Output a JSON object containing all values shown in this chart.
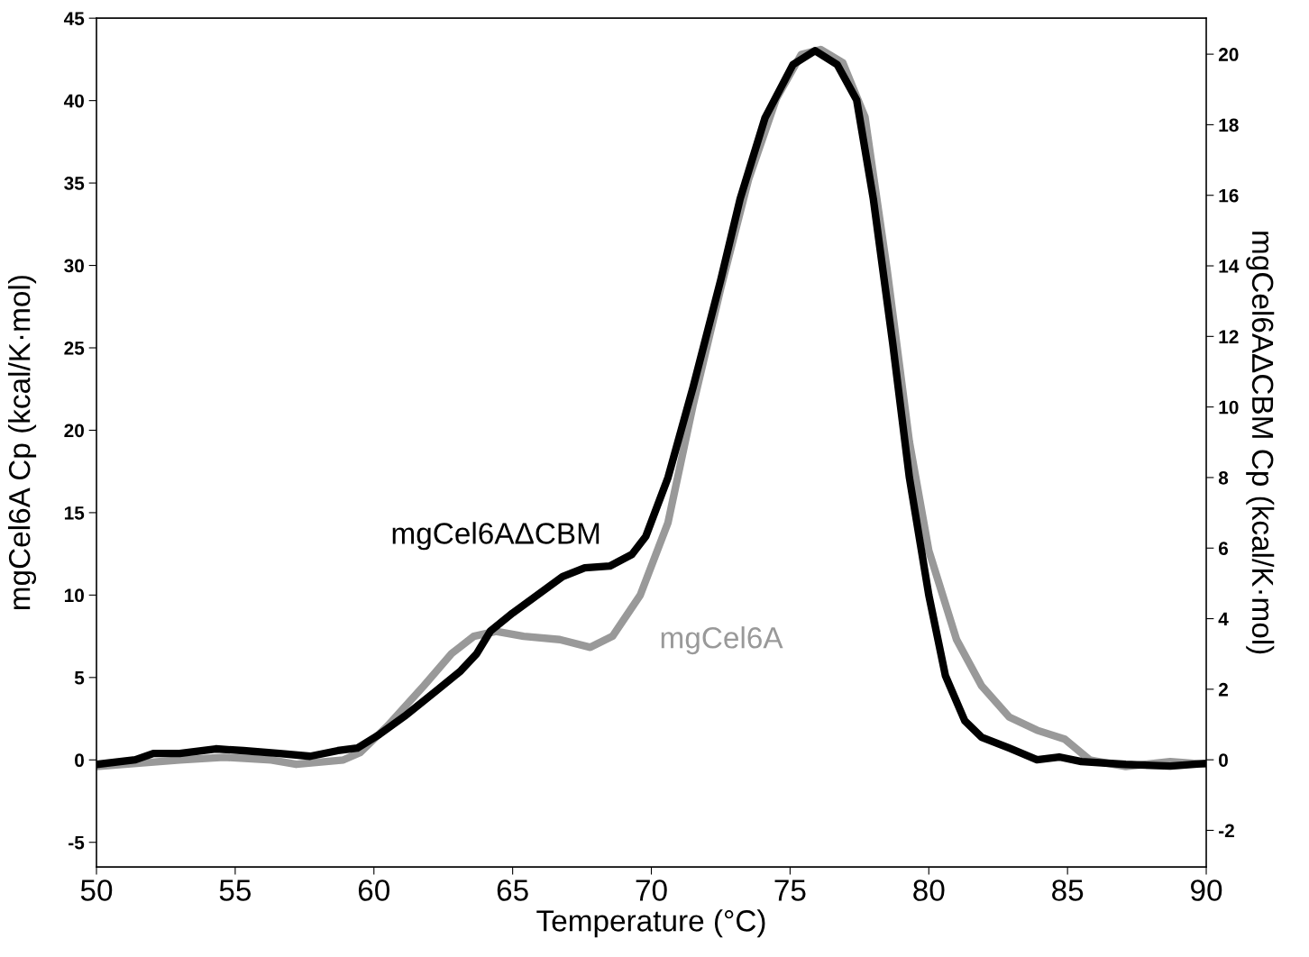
{
  "chart_data": {
    "type": "line",
    "xlabel": "Temperature (°C)",
    "ylabel": "mgCel6A Cp (kcal/K·mol)",
    "y2label": "mgCel6AΔCBM Cp (kcal/K·mol)",
    "xlim": [
      50,
      90
    ],
    "xticks": [
      50,
      55,
      60,
      65,
      70,
      75,
      80,
      85,
      90
    ],
    "ylim": [
      -6.5,
      45
    ],
    "yticks": [
      -5,
      0,
      5,
      10,
      15,
      20,
      25,
      30,
      35,
      40,
      45
    ],
    "y2lim": [
      -3.04,
      21.02
    ],
    "y2ticks": [
      -2,
      0,
      2,
      4,
      6,
      8,
      10,
      12,
      14,
      16,
      18,
      20
    ],
    "grid": false,
    "legend": false,
    "line_style": "solid",
    "marker": "none",
    "series": [
      {
        "name": "mgCel6A",
        "color": "#999999",
        "x": [
          50,
          53.0,
          54.6,
          56.3,
          57.2,
          58.9,
          59.5,
          60.5,
          61.8,
          62.8,
          63.6,
          64.4,
          65.4,
          66.7,
          67.8,
          68.6,
          69.6,
          70.6,
          71.5,
          72.5,
          73.5,
          74.5,
          75.4,
          76.1,
          76.9,
          77.7,
          78.5,
          79.3,
          80.0,
          81.0,
          81.9,
          82.9,
          83.9,
          84.9,
          85.8,
          87.1,
          88.7,
          90
        ],
        "values": [
          -0.4,
          0,
          0.16,
          0,
          -0.27,
          0,
          0.44,
          2.08,
          4.5,
          6.45,
          7.5,
          7.8,
          7.5,
          7.3,
          6.83,
          7.5,
          10.0,
          14.4,
          21.5,
          28.6,
          35.2,
          40.1,
          42.8,
          43.1,
          42.3,
          39.0,
          29.7,
          19.3,
          12.7,
          7.3,
          4.5,
          2.6,
          1.8,
          1.26,
          0,
          -0.4,
          -0.1,
          -0.27
        ]
      },
      {
        "name": "mgCel6AΔCBM",
        "color": "#000000",
        "axis": "y2",
        "x": [
          50,
          51.4,
          52.05,
          53.0,
          54.3,
          55.3,
          56.6,
          57.7,
          58.7,
          59.4,
          60.2,
          61.1,
          62.1,
          63.1,
          63.7,
          64.2,
          65.0,
          66.0,
          66.8,
          67.6,
          68.5,
          69.3,
          69.8,
          70.6,
          71.5,
          72.5,
          73.2,
          74.1,
          75.1,
          75.9,
          76.7,
          77.4,
          78.0,
          78.7,
          79.3,
          80.0,
          80.6,
          81.3,
          81.9,
          82.9,
          83.9,
          84.7,
          85.5,
          87.1,
          88.7,
          90
        ],
        "values": [
          -0.13,
          0,
          0.18,
          0.18,
          0.31,
          0.26,
          0.18,
          0.1,
          0.26,
          0.33,
          0.72,
          1.23,
          1.86,
          2.5,
          3.0,
          3.65,
          4.16,
          4.73,
          5.19,
          5.44,
          5.49,
          5.82,
          6.33,
          8.0,
          10.55,
          13.6,
          15.9,
          18.2,
          19.7,
          20.1,
          19.7,
          18.7,
          15.9,
          11.8,
          8.0,
          4.67,
          2.38,
          1.1,
          0.64,
          0.33,
          0,
          0.08,
          -0.05,
          -0.13,
          -0.18,
          -0.1
        ]
      }
    ]
  }
}
